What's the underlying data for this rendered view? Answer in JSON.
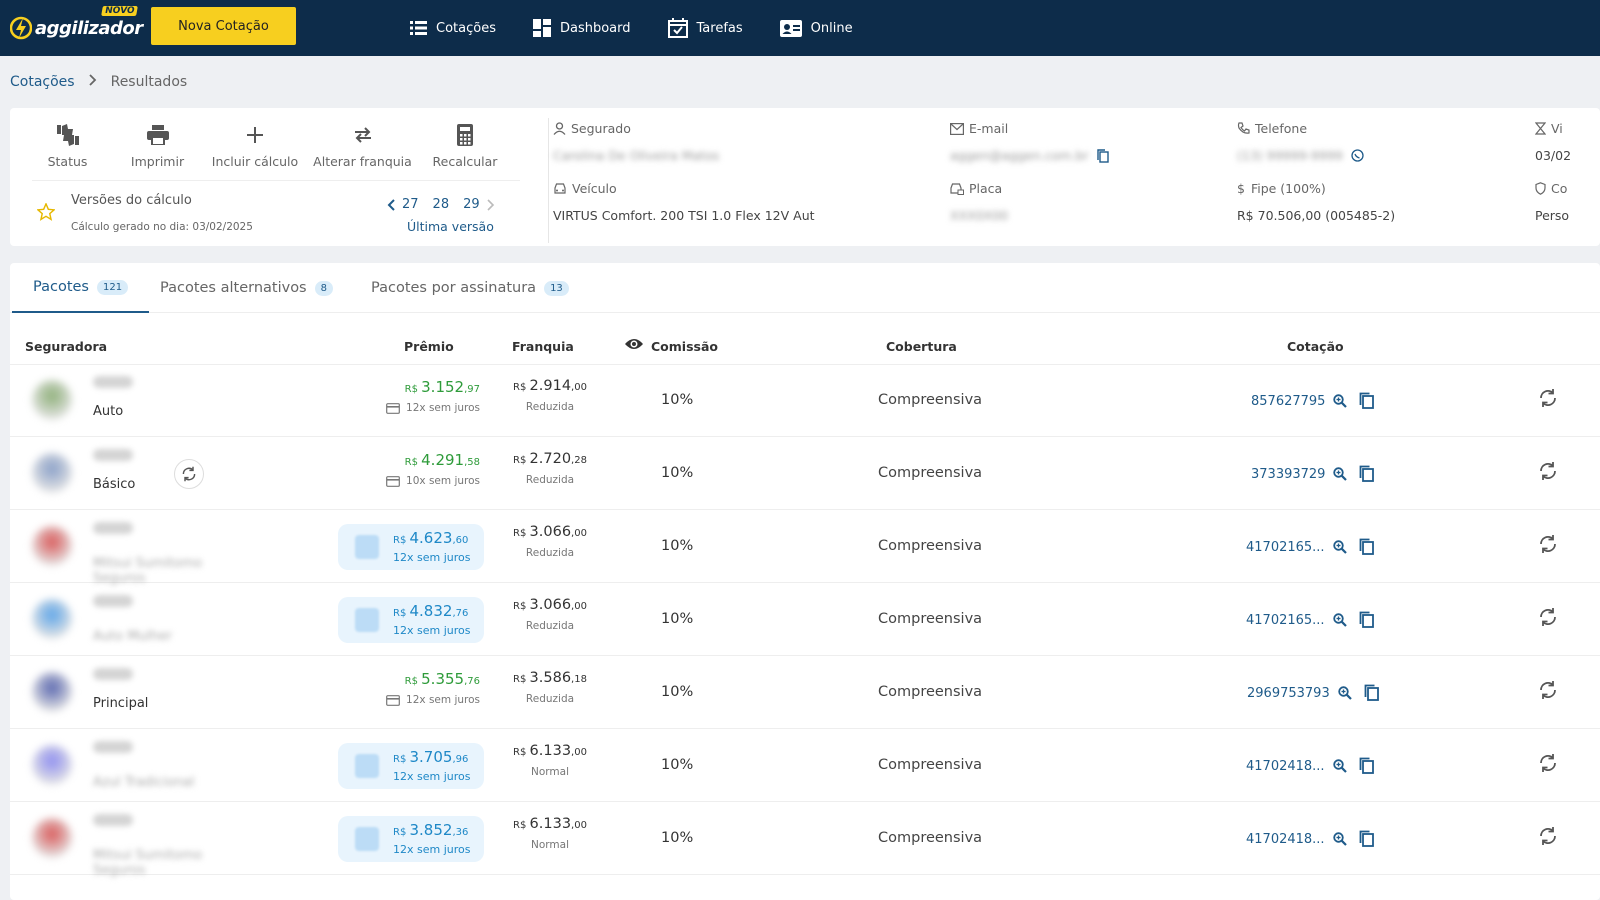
{
  "header": {
    "logo_text": "aggilizador",
    "logo_badge": "NOVO",
    "new_quote_button": "Nova Cotação",
    "nav": [
      {
        "label": "Cotações",
        "icon": "list-icon"
      },
      {
        "label": "Dashboard",
        "icon": "dashboard-icon"
      },
      {
        "label": "Tarefas",
        "icon": "calendar-check-icon"
      },
      {
        "label": "Online",
        "icon": "id-card-icon"
      }
    ]
  },
  "breadcrumb": {
    "root": "Cotações",
    "separator": ">",
    "current": "Resultados"
  },
  "tools": [
    {
      "label": "Status",
      "icon": "thumbs-icon"
    },
    {
      "label": "Imprimir",
      "icon": "printer-icon"
    },
    {
      "label": "Incluir cálculo",
      "icon": "plus-icon"
    },
    {
      "label": "Alterar franquia",
      "icon": "swap-icon"
    },
    {
      "label": "Recalcular",
      "icon": "calculator-icon"
    }
  ],
  "versions": {
    "title": "Versões do cálculo",
    "subtitle": "Cálculo gerado no dia: 03/02/2025",
    "items": [
      "27",
      "28",
      "29"
    ],
    "last_label": "Última versão"
  },
  "details": {
    "segurado": {
      "label": "Segurado",
      "value": "Carolina De Oliveira Matos"
    },
    "email": {
      "label": "E-mail",
      "value": "aggen@aggen.com.br"
    },
    "telefone": {
      "label": "Telefone",
      "value": "(13) 99999-9999"
    },
    "vigencia": {
      "label": "Vi",
      "value": "03/02"
    },
    "veiculo": {
      "label": "Veículo",
      "value": "VIRTUS Comfort. 200 TSI 1.0 Flex 12V Aut"
    },
    "placa": {
      "label": "Placa",
      "value": "XXX0X00"
    },
    "fipe": {
      "label": "Fipe (100%)",
      "value": "R$ 70.506,00 (005485-2)"
    },
    "condutor": {
      "label": "Co",
      "value": "Perso"
    }
  },
  "tabs": [
    {
      "label": "Pacotes",
      "count": "121"
    },
    {
      "label": "Pacotes alternativos",
      "count": "8"
    },
    {
      "label": "Pacotes por assinatura",
      "count": "13"
    }
  ],
  "table": {
    "headers": {
      "seguradora": "Seguradora",
      "premio": "Prêmio",
      "franquia": "Franquia",
      "comissao": "Comissão",
      "cobertura": "Cobertura",
      "cotacao": "Cotação"
    },
    "rows": [
      {
        "insurer": "Allianz",
        "plan": "Auto",
        "plan_blurred": false,
        "logo_color": "#8fb07a",
        "highlight": false,
        "currency": "R$",
        "premio_int": "3.152",
        "premio_dec": ",97",
        "installments": "12x sem juros",
        "franq_int": "2.914",
        "franq_dec": ",00",
        "franq_type": "Reduzida",
        "comissao": "10%",
        "cobertura": "Compreensiva",
        "cotacao": "857627795",
        "refresh": false
      },
      {
        "insurer": "Azul",
        "plan": "Básico",
        "plan_blurred": false,
        "logo_color": "#8aa0c8",
        "highlight": false,
        "currency": "R$",
        "premio_int": "4.291",
        "premio_dec": ",58",
        "installments": "10x sem juros",
        "franq_int": "2.720",
        "franq_dec": ",28",
        "franq_type": "Reduzida",
        "comissao": "10%",
        "cobertura": "Compreensiva",
        "cotacao": "373393729",
        "refresh": true
      },
      {
        "insurer": "Mitsui",
        "plan": "Mitsui Sumitomo Seguros",
        "plan_blurred": true,
        "logo_color": "#d95b5b",
        "highlight": true,
        "currency": "R$",
        "premio_int": "4.623",
        "premio_dec": ",60",
        "installments": "12x sem juros",
        "franq_int": "3.066",
        "franq_dec": ",00",
        "franq_type": "Reduzida",
        "comissao": "10%",
        "cobertura": "Compreensiva",
        "cotacao": "41702165...",
        "refresh": false
      },
      {
        "insurer": "Porto Seguro",
        "plan": "Auto Mulher",
        "plan_blurred": true,
        "logo_color": "#5ea5e8",
        "highlight": true,
        "currency": "R$",
        "premio_int": "4.832",
        "premio_dec": ",76",
        "installments": "12x sem juros",
        "franq_int": "3.066",
        "franq_dec": ",00",
        "franq_type": "Reduzida",
        "comissao": "10%",
        "cobertura": "Compreensiva",
        "cotacao": "41702165...",
        "refresh": false
      },
      {
        "insurer": "HDI",
        "plan": "Principal",
        "plan_blurred": false,
        "logo_color": "#5b68b0",
        "highlight": false,
        "currency": "R$",
        "premio_int": "5.355",
        "premio_dec": ",76",
        "installments": "12x sem juros",
        "franq_int": "3.586",
        "franq_dec": ",18",
        "franq_type": "Reduzida",
        "comissao": "10%",
        "cobertura": "Compreensiva",
        "cotacao": "2969753793",
        "refresh": false
      },
      {
        "insurer": "Azul",
        "plan": "Azul Tradicional",
        "plan_blurred": true,
        "logo_color": "#8f8ff0",
        "highlight": true,
        "currency": "R$",
        "premio_int": "3.705",
        "premio_dec": ",96",
        "installments": "12x sem juros",
        "franq_int": "6.133",
        "franq_dec": ",00",
        "franq_type": "Normal",
        "comissao": "10%",
        "cobertura": "Compreensiva",
        "cotacao": "41702418...",
        "refresh": false
      },
      {
        "insurer": "Mitsui",
        "plan": "Mitsui Sumitomo Seguros",
        "plan_blurred": true,
        "logo_color": "#d95b5b",
        "highlight": true,
        "currency": "R$",
        "premio_int": "3.852",
        "premio_dec": ",36",
        "installments": "12x sem juros",
        "franq_int": "6.133",
        "franq_dec": ",00",
        "franq_type": "Normal",
        "comissao": "10%",
        "cobertura": "Compreensiva",
        "cotacao": "41702418...",
        "refresh": false
      }
    ]
  },
  "colors": {
    "topbar": "#0d2c4a",
    "accent": "#f7cf1f",
    "link": "#1f5b8a",
    "price_green": "#2e9b3a",
    "price_blue": "#1e88c7"
  }
}
